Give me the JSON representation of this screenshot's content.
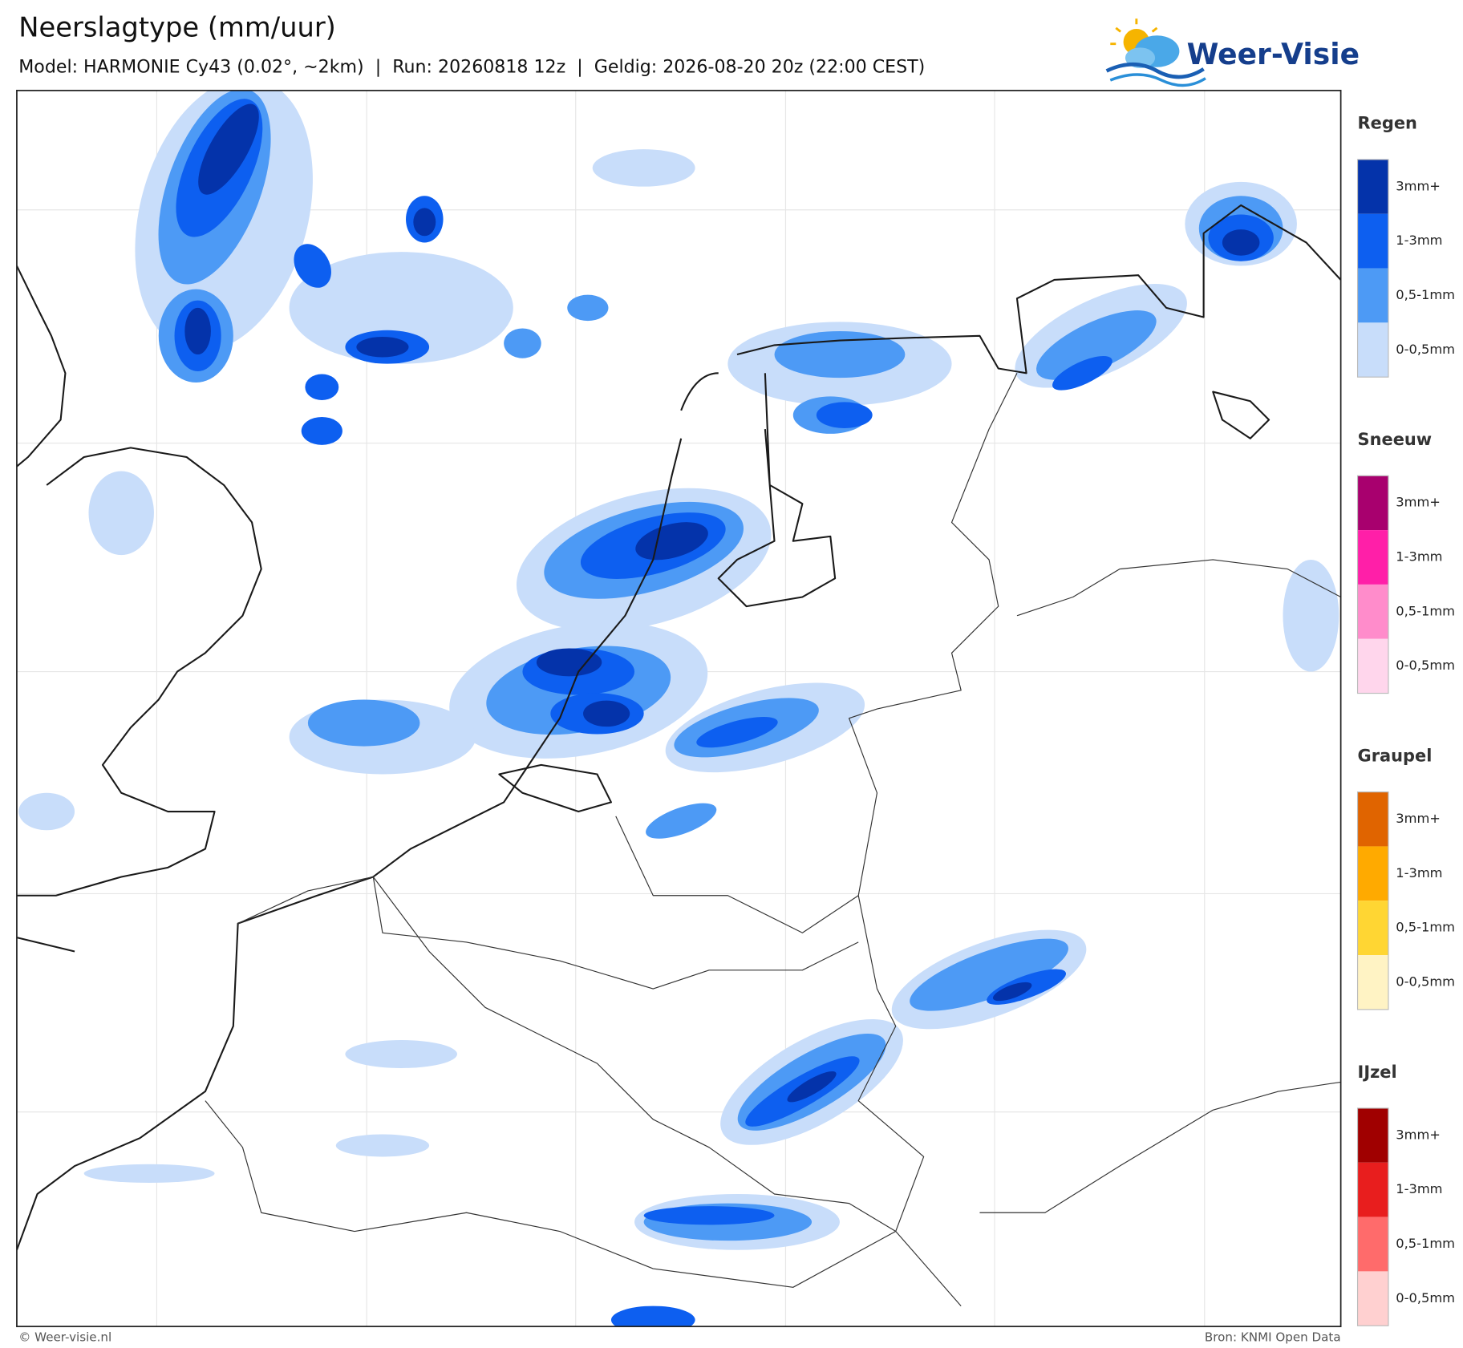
{
  "header": {
    "title": "Neerslagtype (mm/uur)",
    "subtitle": "Model: HARMONIE Cy43 (0.02°, ~2km)  |  Run: 20260818 12z  |  Geldig: 2026-08-20 20z (22:00 CEST)",
    "logo": "Weer-Visie"
  },
  "legend": [
    {
      "title": "Regen",
      "items": [
        {
          "label": "3mm+",
          "color": "#0433aa"
        },
        {
          "label": "1-3mm",
          "color": "#0d5ff0"
        },
        {
          "label": "0,5-1mm",
          "color": "#4d9af5"
        },
        {
          "label": "0-0,5mm",
          "color": "#c8ddfa"
        }
      ]
    },
    {
      "title": "Sneeuw",
      "items": [
        {
          "label": "3mm+",
          "color": "#a8006e"
        },
        {
          "label": "1-3mm",
          "color": "#ff1fa8"
        },
        {
          "label": "0,5-1mm",
          "color": "#ff8ccb"
        },
        {
          "label": "0-0,5mm",
          "color": "#ffd6ec"
        }
      ]
    },
    {
      "title": "Graupel",
      "items": [
        {
          "label": "3mm+",
          "color": "#e06400"
        },
        {
          "label": "1-3mm",
          "color": "#ffaa00"
        },
        {
          "label": "0,5-1mm",
          "color": "#ffd633"
        },
        {
          "label": "0-0,5mm",
          "color": "#fff3c4"
        }
      ]
    },
    {
      "title": "IJzel",
      "items": [
        {
          "label": "3mm+",
          "color": "#a00000"
        },
        {
          "label": "1-3mm",
          "color": "#e81e1e"
        },
        {
          "label": "0,5-1mm",
          "color": "#ff6b6b"
        },
        {
          "label": "0-0,5mm",
          "color": "#ffd0d0"
        }
      ]
    }
  ],
  "footer": {
    "credit": "© Weer-visie.nl",
    "source": "Bron: KNMI Open Data"
  }
}
